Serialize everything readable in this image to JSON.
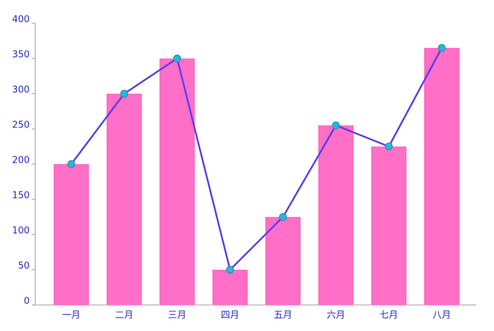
{
  "chart_data": {
    "type": "bar",
    "categories": [
      "一月",
      "二月",
      "三月",
      "四月",
      "五月",
      "六月",
      "七月",
      "八月"
    ],
    "series": [
      {
        "type": "bar",
        "color": "#ff6ec7",
        "values": [
          200,
          300,
          350,
          50,
          125,
          255,
          225,
          365
        ]
      },
      {
        "type": "line",
        "color": "#5b3ee8",
        "marker_color": "#29b6d6",
        "values": [
          200,
          300,
          350,
          50,
          125,
          255,
          225,
          365
        ]
      }
    ],
    "ylim": [
      0,
      400
    ],
    "yticks": [
      0,
      50,
      100,
      150,
      200,
      250,
      300,
      350,
      400
    ],
    "grid": false
  }
}
